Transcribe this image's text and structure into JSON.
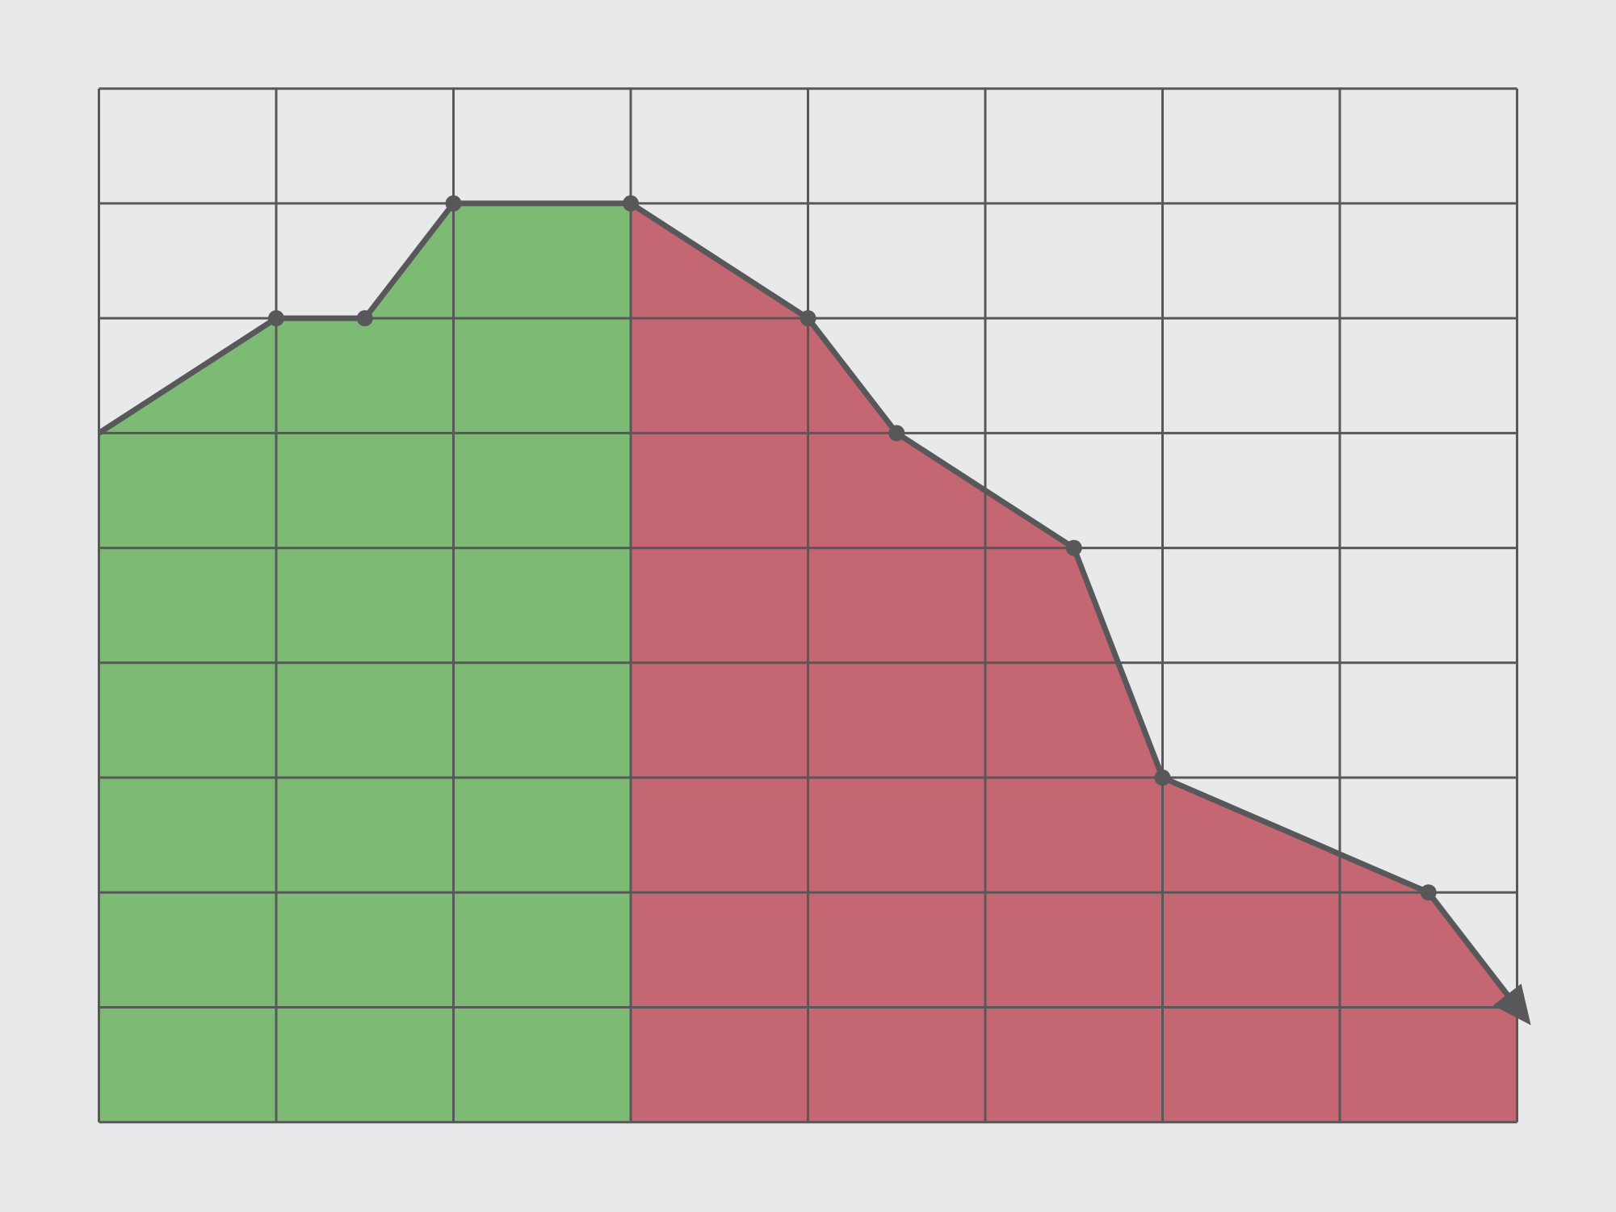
{
  "chart_data": {
    "type": "line",
    "x": [
      0,
      1,
      1.5,
      2,
      3,
      4,
      4.5,
      5.5,
      6,
      7.5,
      8
    ],
    "values": [
      6,
      7,
      7,
      8,
      8,
      7,
      6,
      5,
      3,
      2,
      1
    ],
    "color": "#58585a",
    "xlim": [
      0,
      8
    ],
    "ylim": [
      0,
      9
    ],
    "xticks": [
      0,
      1,
      2,
      3,
      4,
      5,
      6,
      7,
      8
    ],
    "yticks": [
      0,
      1,
      2,
      3,
      4,
      5,
      6,
      7,
      8,
      9
    ],
    "grid": true,
    "arrow_end": true,
    "regions": [
      {
        "from": 0,
        "to": 3,
        "color": "#7dbb75"
      },
      {
        "from": 3,
        "to": 8,
        "color": "#c46773"
      }
    ]
  }
}
